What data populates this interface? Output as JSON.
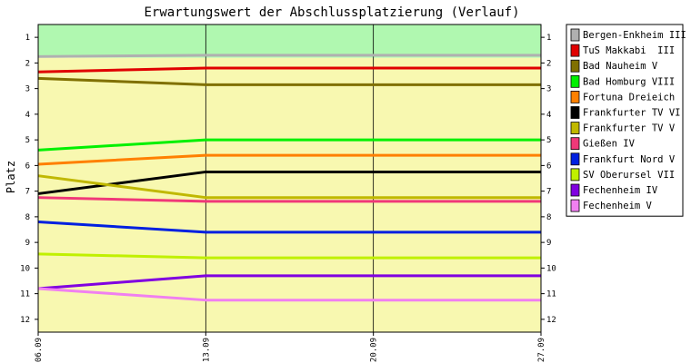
{
  "chart_data": {
    "type": "line",
    "title": "Erwartungswert der Abschlussplatzierung (Verlauf)",
    "ylabel": "Platz",
    "xlabel": "",
    "x": [
      "06.09",
      "13.09",
      "20.09",
      "27.09"
    ],
    "ylim": [
      1,
      12
    ],
    "y_inverted": true,
    "y_ticks": [
      "1",
      "2",
      "3",
      "4",
      "5",
      "6",
      "7",
      "8",
      "9",
      "10",
      "11",
      "12"
    ],
    "grid": "vertical",
    "legend_position": "right",
    "background_bands": [
      {
        "from": 0.5,
        "to": 1.8,
        "color": "#b0f8b0"
      },
      {
        "from": 1.8,
        "to": 12.5,
        "color": "#f8f8b0"
      }
    ],
    "series": [
      {
        "name": "Bergen-Enkheim III",
        "color": "#b0b0b0",
        "values": [
          1.75,
          1.7,
          1.7,
          1.7
        ]
      },
      {
        "name": "TuS Makkabi  III",
        "color": "#e00000",
        "values": [
          2.35,
          2.2,
          2.2,
          2.2
        ]
      },
      {
        "name": "Bad Nauheim V",
        "color": "#807000",
        "values": [
          2.6,
          2.85,
          2.85,
          2.85
        ]
      },
      {
        "name": "Bad Homburg VIII",
        "color": "#00f000",
        "values": [
          5.4,
          5.0,
          5.0,
          5.0
        ]
      },
      {
        "name": "Fortuna Dreieich",
        "color": "#ff8000",
        "values": [
          5.95,
          5.6,
          5.6,
          5.6
        ]
      },
      {
        "name": "Frankfurter TV VI",
        "color": "#000000",
        "values": [
          7.1,
          6.25,
          6.25,
          6.25
        ]
      },
      {
        "name": "Frankfurter TV V",
        "color": "#c0b800",
        "values": [
          6.4,
          7.25,
          7.25,
          7.25
        ]
      },
      {
        "name": "Gießen IV",
        "color": "#f03878",
        "values": [
          7.25,
          7.4,
          7.4,
          7.4
        ]
      },
      {
        "name": "Frankfurt Nord V",
        "color": "#0020e0",
        "values": [
          8.2,
          8.6,
          8.6,
          8.6
        ]
      },
      {
        "name": "SV Oberursel VII",
        "color": "#c0f000",
        "values": [
          9.45,
          9.6,
          9.6,
          9.6
        ]
      },
      {
        "name": "Fechenheim IV",
        "color": "#8000e0",
        "values": [
          10.8,
          10.3,
          10.3,
          10.3
        ]
      },
      {
        "name": "Fechenheim V",
        "color": "#f080f0",
        "values": [
          10.8,
          11.25,
          11.25,
          11.25
        ]
      }
    ]
  }
}
